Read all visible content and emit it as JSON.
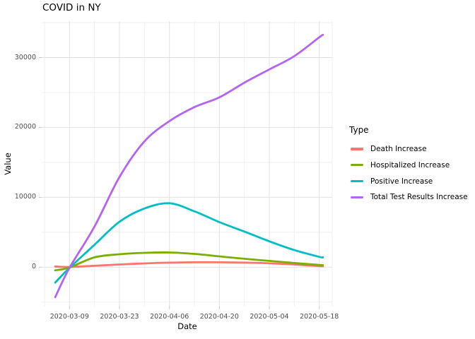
{
  "chart": {
    "title": "COVID in NY",
    "xlabel": "Date",
    "ylabel": "Value",
    "legend_title": "Type"
  },
  "legend": {
    "title": "Type",
    "items": [
      {
        "label": "Death Increase",
        "color": "#F8766D"
      },
      {
        "label": "Hospitalized Increase",
        "color": "#7CAE00"
      },
      {
        "label": "Positive Increase",
        "color": "#00BFC4"
      },
      {
        "label": "Total Test Results Increase",
        "color": "#B464F3"
      }
    ]
  },
  "chart_data": {
    "type": "line",
    "title": "COVID in NY",
    "xlabel": "Date",
    "ylabel": "Value",
    "legend_title": "Type",
    "legend_position": "right",
    "grid": true,
    "x": [
      "2020-03-05",
      "2020-03-09",
      "2020-03-16",
      "2020-03-23",
      "2020-03-30",
      "2020-04-06",
      "2020-04-13",
      "2020-04-20",
      "2020-04-27",
      "2020-05-04",
      "2020-05-11",
      "2020-05-18",
      "2020-05-19"
    ],
    "series": [
      {
        "name": "Death Increase",
        "color": "#F8766D",
        "values": [
          100,
          30,
          200,
          380,
          540,
          650,
          700,
          700,
          650,
          550,
          380,
          160,
          140
        ]
      },
      {
        "name": "Hospitalized Increase",
        "color": "#7CAE00",
        "values": [
          -450,
          -50,
          1400,
          1850,
          2050,
          2100,
          1900,
          1550,
          1200,
          900,
          600,
          310,
          290
        ]
      },
      {
        "name": "Positive Increase",
        "color": "#00BFC4",
        "values": [
          -2200,
          -100,
          3200,
          6500,
          8400,
          9150,
          8000,
          6450,
          5100,
          3700,
          2450,
          1480,
          1420
        ]
      },
      {
        "name": "Total Test Results Increase",
        "color": "#B464F3",
        "values": [
          -4300,
          -100,
          5800,
          12900,
          18000,
          20900,
          22900,
          24300,
          26400,
          28300,
          30200,
          32900,
          33250
        ]
      }
    ],
    "x_ticks": [
      "2020-03-09",
      "2020-03-23",
      "2020-04-06",
      "2020-04-20",
      "2020-05-04",
      "2020-05-18"
    ],
    "x_minor_ticks": [
      "2020-03-02",
      "2020-03-16",
      "2020-03-30",
      "2020-04-13",
      "2020-04-27",
      "2020-05-11"
    ],
    "y_ticks": [
      0,
      10000,
      20000,
      30000
    ],
    "y_minor_ticks": [
      -5000,
      5000,
      15000,
      25000,
      35000
    ],
    "ylim": [
      -6200,
      35300
    ],
    "xlim": [
      "2020-03-01",
      "2020-05-23"
    ]
  },
  "colors": {
    "grid_major": "#e2e2e2",
    "grid_minor": "#efefef",
    "tick": "#c4c4c4",
    "tick_label": "#4d4d4d",
    "text": "#000000"
  }
}
